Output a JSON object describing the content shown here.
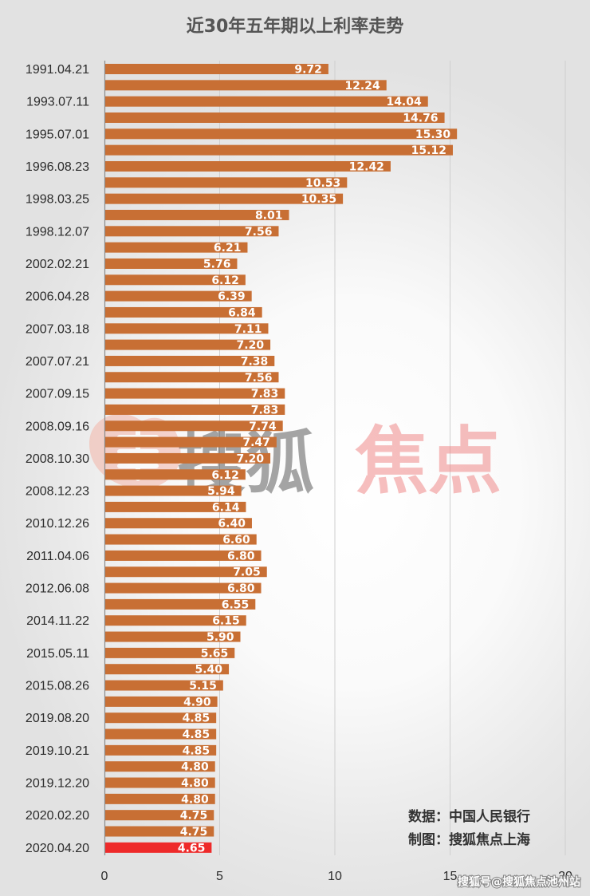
{
  "chart_data": {
    "type": "bar",
    "orientation": "horizontal",
    "title": "近30年五年期以上利率走势",
    "xlim": [
      0,
      20
    ],
    "x_ticks": [
      "0",
      "5",
      "10",
      "15",
      "20"
    ],
    "grid": true,
    "categories": [
      "1991.04.21",
      "",
      "1993.07.11",
      "",
      "1995.07.01",
      "",
      "1996.08.23",
      "",
      "1998.03.25",
      "",
      "1998.12.07",
      "",
      "2002.02.21",
      "",
      "2006.04.28",
      "",
      "2007.03.18",
      "",
      "2007.07.21",
      "",
      "2007.09.15",
      "",
      "2008.09.16",
      "",
      "2008.10.30",
      "",
      "2008.12.23",
      "",
      "2010.12.26",
      "",
      "2011.04.06",
      "",
      "2012.06.08",
      "",
      "2014.11.22",
      "",
      "2015.05.11",
      "",
      "2015.08.26",
      "",
      "2019.08.20",
      "",
      "2019.10.21",
      "",
      "2019.12.20",
      "",
      "2020.02.20",
      "",
      "2020.04.20"
    ],
    "values": [
      9.72,
      12.24,
      14.04,
      14.76,
      15.3,
      15.12,
      12.42,
      10.53,
      10.35,
      8.01,
      7.56,
      6.21,
      5.76,
      6.12,
      6.39,
      6.84,
      7.11,
      7.2,
      7.38,
      7.56,
      7.83,
      7.83,
      7.74,
      7.47,
      7.2,
      6.12,
      5.94,
      6.14,
      6.4,
      6.6,
      6.8,
      7.05,
      6.8,
      6.55,
      6.15,
      5.9,
      5.65,
      5.4,
      5.15,
      4.9,
      4.85,
      4.85,
      4.85,
      4.8,
      4.8,
      4.8,
      4.75,
      4.75,
      4.65
    ],
    "data_labels": [
      "9.72",
      "12.24",
      "14.04",
      "14.76",
      "15.30",
      "15.12",
      "12.42",
      "10.53",
      "10.35",
      "8.01",
      "7.56",
      "6.21",
      "5.76",
      "6.12",
      "6.39",
      "6.84",
      "7.11",
      "7.20",
      "7.38",
      "7.56",
      "7.83",
      "7.83",
      "7.74",
      "7.47",
      "7.20",
      "6.12",
      "5.94",
      "6.14",
      "6.40",
      "6.60",
      "6.80",
      "7.05",
      "6.80",
      "6.55",
      "6.15",
      "5.90",
      "5.65",
      "5.40",
      "5.15",
      "4.90",
      "4.85",
      "4.85",
      "4.85",
      "4.80",
      "4.80",
      "4.80",
      "4.75",
      "4.75",
      "4.65"
    ],
    "bar_color": "#c86f34",
    "highlight_color": "#ee2a2a",
    "highlight_index": 48
  },
  "notes": {
    "source": "数据：中国人民银行",
    "author": "制图：搜狐焦点上海"
  },
  "watermark": {
    "text_gray": "搜狐",
    "text_pink": "焦点",
    "credit": "搜狐号@搜狐焦点池州站"
  }
}
